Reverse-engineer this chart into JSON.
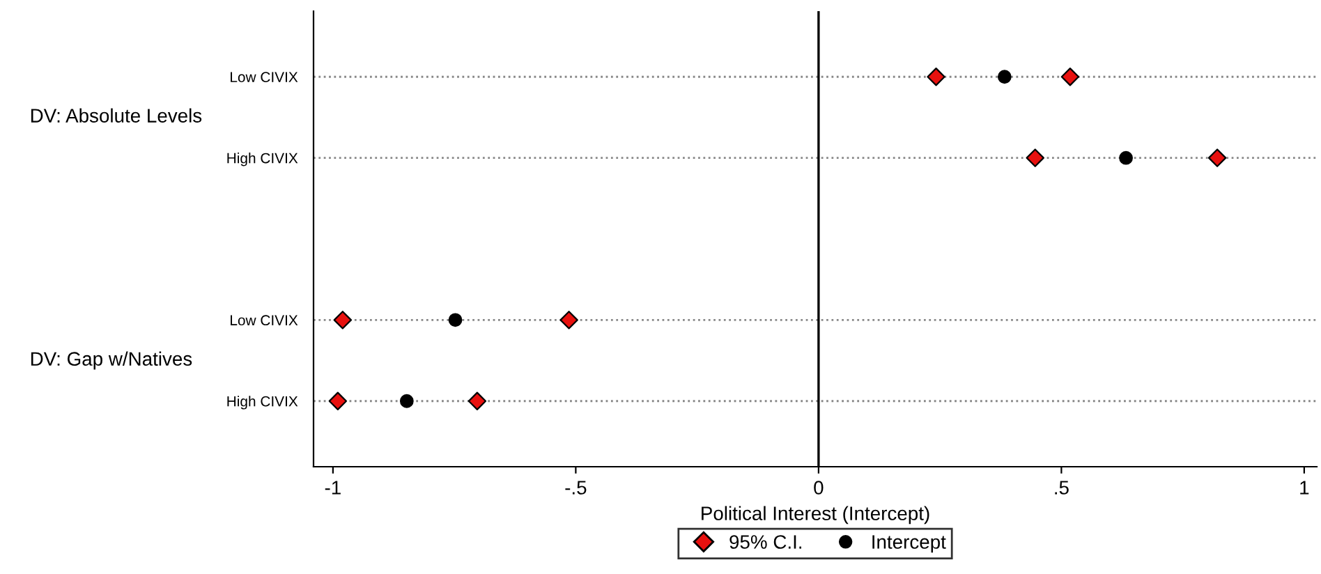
{
  "chart_data": {
    "type": "scatter",
    "orientation": "horizontal",
    "xlabel": "Political Interest (Intercept)",
    "categories": [
      "Low CIVIX",
      "High CIVIX",
      null,
      "Low CIVIX",
      "High CIVIX"
    ],
    "series": [
      {
        "name": "95% C.I.",
        "color": "#e8110f",
        "marker": "diamond",
        "values": [
          0.242,
          0.446,
          null,
          -0.98,
          -0.99
        ]
      },
      {
        "color": "#e8110f",
        "marker": "diamond",
        "values": [
          0.518,
          0.821,
          null,
          -0.514,
          -0.703
        ]
      },
      {
        "name": "Intercept",
        "color": "#000000",
        "marker": "circle",
        "values": [
          0.383,
          0.633,
          null,
          -0.748,
          -0.848
        ]
      }
    ],
    "annotations": [
      "DV: Absolute Levels",
      "DV: Gap w/Natives"
    ],
    "xlim": [
      -1.04,
      1.026
    ],
    "xticks": [
      {
        "value": -1,
        "label": "-1"
      },
      {
        "value": -0.5,
        "label": "-.5"
      },
      0,
      {
        "value": 0.5,
        "label": ".5"
      },
      1
    ],
    "ref_lines": [
      {
        "axis": "x",
        "value": 0,
        "color": "#000000"
      }
    ],
    "grid": "y",
    "line_style": "dotted",
    "legend": "bottom"
  }
}
